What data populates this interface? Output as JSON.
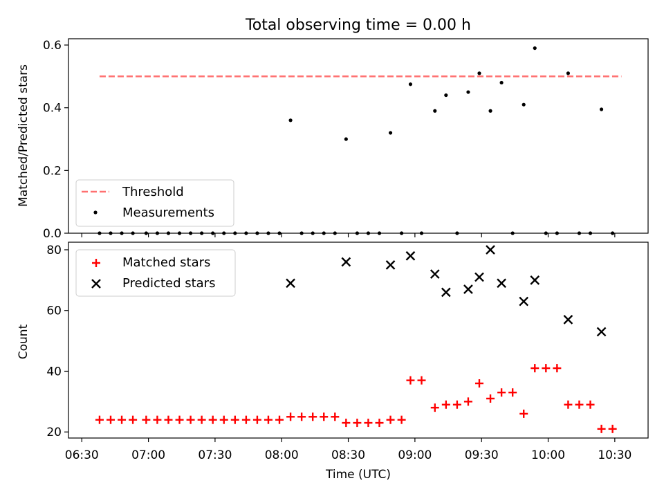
{
  "figure": {
    "title": "Total observing time = 0.00 h"
  },
  "chart_data": [
    {
      "type": "scatter",
      "panel": "top",
      "ylabel": "Matched/Predicted stars",
      "xlabel": "",
      "xlim": [
        "06:24",
        "10:45"
      ],
      "ylim": [
        0,
        0.62
      ],
      "yticks": [
        0.0,
        0.2,
        0.4,
        0.6
      ],
      "ytick_labels": [
        "0.0",
        "0.2",
        "0.4",
        "0.6"
      ],
      "legend_position": "lower-left",
      "threshold": {
        "name": "Threshold",
        "value": 0.5,
        "x_start": "06:38",
        "x_end": "10:33",
        "color": "#ff7070",
        "style": "dashed"
      },
      "series": [
        {
          "name": "Measurements",
          "color": "#000000",
          "marker": "dot",
          "points": [
            [
              "06:38",
              0
            ],
            [
              "06:43",
              0
            ],
            [
              "06:48",
              0
            ],
            [
              "06:53",
              0
            ],
            [
              "06:59",
              0
            ],
            [
              "07:04",
              0
            ],
            [
              "07:09",
              0
            ],
            [
              "07:14",
              0
            ],
            [
              "07:19",
              0
            ],
            [
              "07:24",
              0
            ],
            [
              "07:29",
              0
            ],
            [
              "07:34",
              0
            ],
            [
              "07:39",
              0
            ],
            [
              "07:44",
              0
            ],
            [
              "07:49",
              0
            ],
            [
              "07:54",
              0
            ],
            [
              "07:59",
              0
            ],
            [
              "08:04",
              0.36
            ],
            [
              "08:09",
              0
            ],
            [
              "08:14",
              0
            ],
            [
              "08:19",
              0
            ],
            [
              "08:24",
              0
            ],
            [
              "08:29",
              0.3
            ],
            [
              "08:34",
              0
            ],
            [
              "08:39",
              0
            ],
            [
              "08:44",
              0
            ],
            [
              "08:49",
              0.32
            ],
            [
              "08:54",
              0
            ],
            [
              "08:58",
              0.475
            ],
            [
              "09:03",
              0
            ],
            [
              "09:09",
              0.39
            ],
            [
              "09:14",
              0.44
            ],
            [
              "09:19",
              0
            ],
            [
              "09:24",
              0.45
            ],
            [
              "09:29",
              0.51
            ],
            [
              "09:34",
              0.39
            ],
            [
              "09:39",
              0.48
            ],
            [
              "09:44",
              0
            ],
            [
              "09:49",
              0.41
            ],
            [
              "09:54",
              0.59
            ],
            [
              "09:59",
              0
            ],
            [
              "10:04",
              0
            ],
            [
              "10:09",
              0.51
            ],
            [
              "10:14",
              0
            ],
            [
              "10:19",
              0
            ],
            [
              "10:24",
              0.395
            ],
            [
              "10:29",
              0
            ]
          ]
        }
      ]
    },
    {
      "type": "scatter",
      "panel": "bottom",
      "ylabel": "Count",
      "xlabel": "Time (UTC)",
      "xlim": [
        "06:24",
        "10:45"
      ],
      "ylim": [
        18,
        82.5
      ],
      "yticks": [
        20,
        40,
        60,
        80
      ],
      "ytick_labels": [
        "20",
        "40",
        "60",
        "80"
      ],
      "xticks": [
        "06:30",
        "07:00",
        "07:30",
        "08:00",
        "08:30",
        "09:00",
        "09:30",
        "10:00",
        "10:30"
      ],
      "legend_position": "upper-left",
      "series": [
        {
          "name": "Matched stars",
          "color": "#ff0000",
          "marker": "plus",
          "points": [
            [
              "06:38",
              24
            ],
            [
              "06:43",
              24
            ],
            [
              "06:48",
              24
            ],
            [
              "06:53",
              24
            ],
            [
              "06:59",
              24
            ],
            [
              "07:04",
              24
            ],
            [
              "07:09",
              24
            ],
            [
              "07:14",
              24
            ],
            [
              "07:19",
              24
            ],
            [
              "07:24",
              24
            ],
            [
              "07:29",
              24
            ],
            [
              "07:34",
              24
            ],
            [
              "07:39",
              24
            ],
            [
              "07:44",
              24
            ],
            [
              "07:49",
              24
            ],
            [
              "07:54",
              24
            ],
            [
              "07:59",
              24
            ],
            [
              "08:04",
              25
            ],
            [
              "08:09",
              25
            ],
            [
              "08:14",
              25
            ],
            [
              "08:19",
              25
            ],
            [
              "08:24",
              25
            ],
            [
              "08:29",
              23
            ],
            [
              "08:34",
              23
            ],
            [
              "08:39",
              23
            ],
            [
              "08:44",
              23
            ],
            [
              "08:49",
              24
            ],
            [
              "08:54",
              24
            ],
            [
              "08:58",
              37
            ],
            [
              "09:03",
              37
            ],
            [
              "09:09",
              28
            ],
            [
              "09:14",
              29
            ],
            [
              "09:19",
              29
            ],
            [
              "09:24",
              30
            ],
            [
              "09:29",
              36
            ],
            [
              "09:34",
              31
            ],
            [
              "09:39",
              33
            ],
            [
              "09:44",
              33
            ],
            [
              "09:49",
              26
            ],
            [
              "09:54",
              41
            ],
            [
              "09:59",
              41
            ],
            [
              "10:04",
              41
            ],
            [
              "10:09",
              29
            ],
            [
              "10:14",
              29
            ],
            [
              "10:19",
              29
            ],
            [
              "10:24",
              21
            ],
            [
              "10:29",
              21
            ]
          ]
        },
        {
          "name": "Predicted stars",
          "color": "#000000",
          "marker": "x",
          "points": [
            [
              "08:04",
              69
            ],
            [
              "08:29",
              76
            ],
            [
              "08:49",
              75
            ],
            [
              "08:58",
              78
            ],
            [
              "09:09",
              72
            ],
            [
              "09:14",
              66
            ],
            [
              "09:24",
              67
            ],
            [
              "09:29",
              71
            ],
            [
              "09:34",
              80
            ],
            [
              "09:39",
              69
            ],
            [
              "09:49",
              63
            ],
            [
              "09:54",
              70
            ],
            [
              "10:09",
              57
            ],
            [
              "10:24",
              53
            ]
          ]
        }
      ]
    }
  ]
}
